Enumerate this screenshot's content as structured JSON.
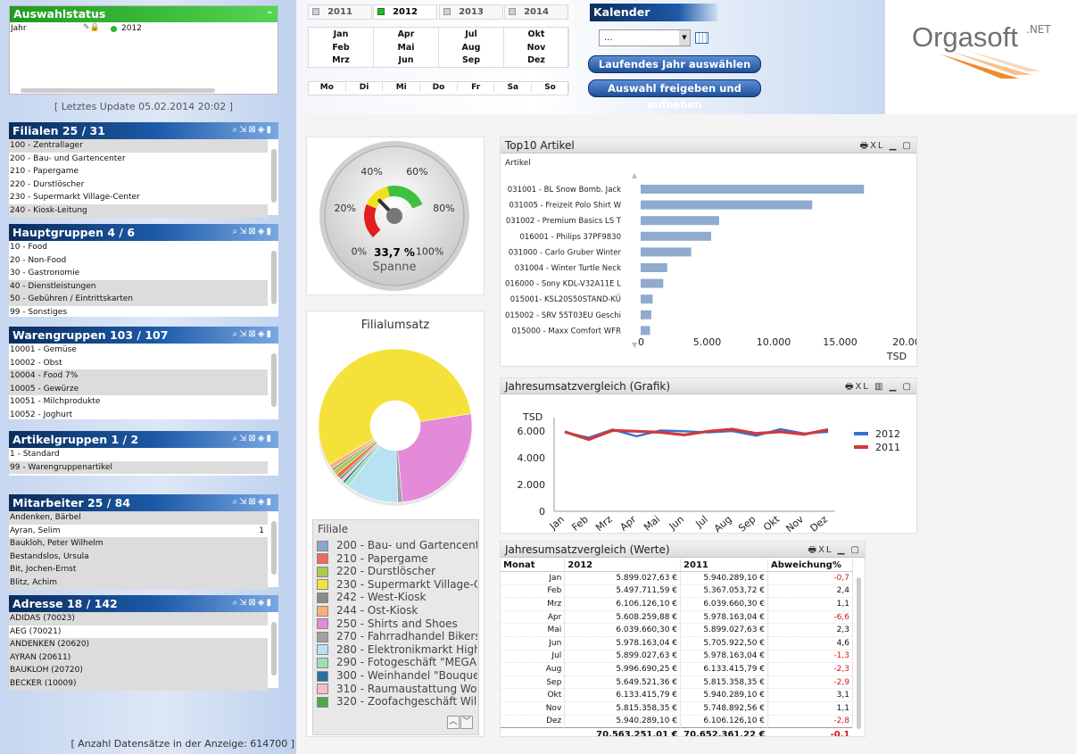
{
  "selection_status": {
    "title": "Auswahlstatus",
    "field": "Jahr",
    "value": "2012"
  },
  "last_update": "[ Letztes Update 05.02.2014 20:02 ]",
  "record_count": "[ Anzahl Datensätze in der Anzeige: 614700 ]",
  "years": [
    "2011",
    "2012",
    "2013",
    "2014"
  ],
  "months": [
    [
      "Jan",
      "Feb",
      "Mrz"
    ],
    [
      "Apr",
      "Mai",
      "Jun"
    ],
    [
      "Jul",
      "Aug",
      "Sep"
    ],
    [
      "Okt",
      "Nov",
      "Dez"
    ]
  ],
  "weekdays": [
    "Mo",
    "Di",
    "Mi",
    "Do",
    "Fr",
    "Sa",
    "So"
  ],
  "calendar": {
    "title": "Kalender",
    "placeholder": "...",
    "btn_current_year": "Laufendes Jahr auswählen",
    "btn_clear": "Auswahl freigeben und aufheben"
  },
  "logo": {
    "text": "Orgasoft",
    "sup": ".NET"
  },
  "listboxes": [
    {
      "title": "Filialen  25 / 31",
      "top": 137,
      "items": [
        "100 - Zentrallager",
        "200 - Bau- und Gartencenter",
        "210 - Papergame",
        "220 - Durstlöscher",
        "230 - Supermarkt Village-Center",
        "240 - Kiosk-Leitung"
      ],
      "alt": [
        0,
        5
      ],
      "counts": {}
    },
    {
      "title": "Hauptgruppen  4 / 6",
      "top": 251,
      "items": [
        "10 - Food",
        "20 - Non-Food",
        "30 - Gastronomie",
        "40 - Dienstleistungen",
        "50 - Gebühren / Eintrittskarten",
        "99 - Sonstiges"
      ],
      "alt": [
        3,
        4
      ],
      "counts": {}
    },
    {
      "title": "Warengruppen  103 / 107",
      "top": 366,
      "items": [
        "10001 - Gemüse",
        "10002 - Obst",
        "10004 - Food 7%",
        "10005 - Gewürze",
        "10051 - Milchprodukte",
        "10052 - Joghurt"
      ],
      "alt": [
        2,
        3
      ],
      "counts": {}
    },
    {
      "title": "Artikelgruppen  1 / 2",
      "top": 483,
      "items": [
        "1 - Standard",
        "99 - Warengruppenartikel"
      ],
      "alt": [
        1
      ],
      "counts": {}
    },
    {
      "title": "Mitarbeiter  25 / 84",
      "top": 554,
      "items": [
        "Andenken, Bärbel",
        "Ayran, Selim",
        "Baukloh, Peter Wilhelm",
        "Bestandslos, Ursula",
        "Bit, Jochen-Ernst",
        "Blitz, Achim"
      ],
      "alt": [
        0,
        2,
        3,
        4,
        5
      ],
      "counts": {
        "1": "1"
      }
    },
    {
      "title": "Adresse  18 / 142",
      "top": 667,
      "items": [
        "ADIDAS (70023)",
        "AEG (70021)",
        "ANDENKEN (20620)",
        "AYRAN (20611)",
        "BAUKLOH (20720)",
        "BECKER (10009)"
      ],
      "alt": [
        0,
        2,
        3,
        4,
        5
      ],
      "counts": {}
    }
  ],
  "gauge": {
    "value_label": "33,7 %",
    "caption": "Spanne",
    "ticks": [
      "0%",
      "20%",
      "40%",
      "60%",
      "80%",
      "100%"
    ]
  },
  "pie": {
    "title": "Filialumsatz",
    "legend_title": "Filiale",
    "legend": [
      {
        "label": "200 - Bau- und Gartencenter",
        "color": "#8ca7c9"
      },
      {
        "label": "210 - Papergame",
        "color": "#f06a5c"
      },
      {
        "label": "220 - Durstlöscher",
        "color": "#a8cc4a"
      },
      {
        "label": "230 - Supermarkt Village-Ce",
        "color": "#f4e23a"
      },
      {
        "label": "242 - West-Kiosk",
        "color": "#8a8a8a"
      },
      {
        "label": "244 - Ost-Kiosk",
        "color": "#f4b27a"
      },
      {
        "label": "250 - Shirts and Shoes",
        "color": "#e38ad8"
      },
      {
        "label": "270 - Fahrradhandel Bikersto",
        "color": "#a0a0a0"
      },
      {
        "label": "280 - Elektronikmarkt HighLe",
        "color": "#b8e2f2"
      },
      {
        "label": "290 - Fotogeschäft \"MEGAPI",
        "color": "#9ee0b4"
      },
      {
        "label": "300 - Weinhandel \"Bouquet\"",
        "color": "#2a6fa0"
      },
      {
        "label": "310 - Raumaustattung Wohn",
        "color": "#f6bcc8"
      },
      {
        "label": "320 - Zoofachgeschäft WilliW",
        "color": "#4aaa4a"
      }
    ]
  },
  "chart_data": [
    {
      "type": "bar",
      "title": "Top10 Artikel",
      "orientation": "horizontal",
      "axis_title": "Artikel",
      "xlabel": "TSD",
      "categories": [
        "031001 - BL Snow Bomb. Jack",
        "031005 - Freizeit Polo Shirt W",
        "031002 - Premium Basics LS T",
        "016001 - Philips 37PF9830",
        "031000 - Carlo Gruber Winter",
        "031004 - Winter Turtle Neck",
        "016000 - Sony KDL-V32A11E L",
        "015001- KSL20S50STAND-KÜ",
        "015002 - SRV 55T03EU Geschi",
        "015000 - Maxx Comfort WFR"
      ],
      "values": [
        16800,
        12900,
        5900,
        5300,
        3800,
        2000,
        1700,
        900,
        800,
        700
      ],
      "xlim": [
        0,
        20000
      ],
      "ticks": [
        "0",
        "5.000",
        "10.000",
        "15.000",
        "20.00"
      ],
      "color": "#90aad0"
    },
    {
      "type": "line",
      "title": "Jahresumsatzvergleich (Grafik)",
      "ylabel": "TSD",
      "xlabel": "Monat",
      "categories": [
        "Jan",
        "Feb",
        "Mrz",
        "Apr",
        "Mai",
        "Jun",
        "Jul",
        "Aug",
        "Sep",
        "Okt",
        "Nov",
        "Dez"
      ],
      "series": [
        {
          "name": "2012",
          "color": "#3a6fd6",
          "values": [
            5899.03,
            5497.71,
            6106.13,
            5608.26,
            6039.66,
            5978.16,
            5899.03,
            5996.69,
            5649.52,
            6133.42,
            5815.36,
            5940.29
          ]
        },
        {
          "name": "2011",
          "color": "#d03a3a",
          "values": [
            5940.29,
            5367.05,
            6039.66,
            5978.16,
            5899.03,
            5705.92,
            5978.16,
            6133.42,
            5815.36,
            5940.29,
            5748.89,
            6106.13
          ]
        }
      ],
      "ylim": [
        0,
        7000
      ],
      "ticks": [
        "0",
        "2.000",
        "4.000",
        "6.000"
      ]
    },
    {
      "type": "table",
      "title": "Jahresumsatzvergleich (Werte)",
      "columns": [
        "Monat",
        "2012",
        "2011",
        "Abweichung%"
      ],
      "rows": [
        [
          "Jan",
          "5.899.027,63 €",
          "5.940.289,10 €",
          "-0,7"
        ],
        [
          "Feb",
          "5.497.711,59 €",
          "5.367.053,72 €",
          "2,4"
        ],
        [
          "Mrz",
          "6.106.126,10 €",
          "6.039.660,30 €",
          "1,1"
        ],
        [
          "Apr",
          "5.608.259,88 €",
          "5.978.163,04 €",
          "-6,6"
        ],
        [
          "Mai",
          "6.039.660,30 €",
          "5.899.027,63 €",
          "2,3"
        ],
        [
          "Jun",
          "5.978.163,04 €",
          "5.705.922,50 €",
          "4,6"
        ],
        [
          "Jul",
          "5.899.027,63 €",
          "5.978.163,04 €",
          "-1,3"
        ],
        [
          "Aug",
          "5.996.690,25 €",
          "6.133.415,79 €",
          "-2,3"
        ],
        [
          "Sep",
          "5.649.521,36 €",
          "5.815.358,35 €",
          "-2,9"
        ],
        [
          "Okt",
          "6.133.415,79 €",
          "5.940.289,10 €",
          "3,1"
        ],
        [
          "Nov",
          "5.815.358,35 €",
          "5.748.892,56 €",
          "1,1"
        ],
        [
          "Dez",
          "5.940.289,10 €",
          "6.106.126,10 €",
          "-2,8"
        ]
      ],
      "total": [
        "",
        "70.563.251,01 €",
        "70.652.361,22 €",
        "-0,1"
      ]
    }
  ]
}
